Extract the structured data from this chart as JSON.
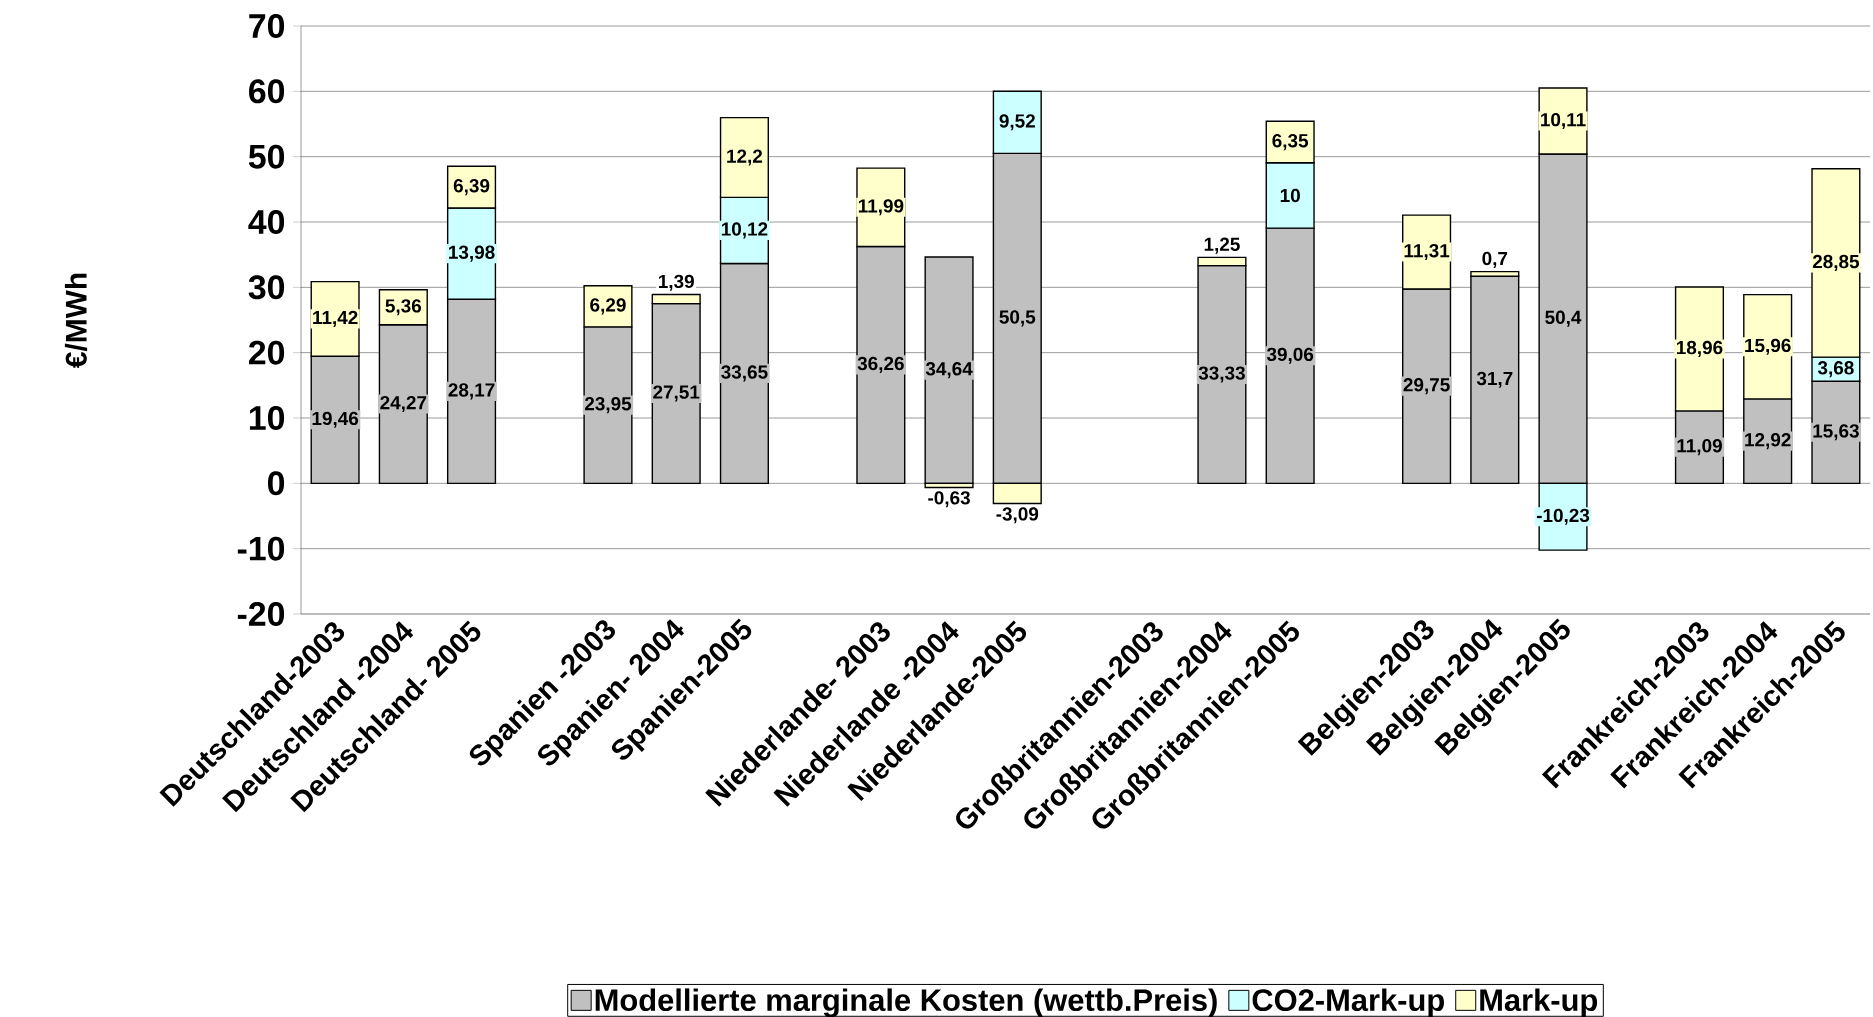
{
  "chart_data": {
    "type": "bar",
    "stacked": true,
    "ylabel": "€/MWh",
    "categories": [
      "Deutschland-2003",
      "Deutschland -2004",
      "Deutschland- 2005",
      null,
      "Spanien -2003",
      "Spanien- 2004",
      "Spanien-2005",
      null,
      "Niederlande- 2003",
      "Niederlande -2004",
      "Niederlande-2005",
      null,
      "Großbritannien-2003",
      "Großbritannien-2004",
      "Großbritannien-2005",
      null,
      "Belgien-2003",
      "Belgien-2004",
      "Belgien-2005",
      null,
      "Frankreich-2003",
      "Frankreich-2004",
      "Frankreich-2005"
    ],
    "series": [
      {
        "name": "Modellierte marginale Kosten (wettb.Preis)",
        "color": "#c0c0c0",
        "values": [
          19.46,
          24.27,
          28.17,
          null,
          23.95,
          27.51,
          33.65,
          null,
          36.26,
          34.64,
          50.5,
          null,
          null,
          33.33,
          39.06,
          null,
          29.75,
          31.7,
          50.4,
          null,
          11.09,
          12.92,
          15.63
        ],
        "value_labels": [
          "19,46",
          "24,27",
          "28,17",
          null,
          "23,95",
          "27,51",
          "33,65",
          null,
          "36,26",
          "34,64",
          "50,5",
          null,
          null,
          "33,33",
          "39,06",
          null,
          "29,75",
          "31,7",
          "50,4",
          null,
          "11,09",
          "12,92",
          "15,63"
        ]
      },
      {
        "name": "CO2-Mark-up",
        "color": "#ccffff",
        "values": [
          null,
          null,
          13.98,
          null,
          null,
          null,
          10.12,
          null,
          null,
          null,
          9.52,
          null,
          null,
          null,
          10,
          null,
          null,
          null,
          -10.23,
          null,
          null,
          null,
          3.68
        ],
        "value_labels": [
          null,
          null,
          "13,98",
          null,
          null,
          null,
          "10,12",
          null,
          null,
          null,
          "9,52",
          null,
          null,
          null,
          "10",
          null,
          null,
          null,
          "-10,23",
          null,
          null,
          null,
          "3,68"
        ]
      },
      {
        "name": "Mark-up",
        "color": "#ffffcc",
        "values": [
          11.42,
          5.36,
          6.39,
          null,
          6.29,
          1.39,
          12.2,
          null,
          11.99,
          -0.63,
          -3.09,
          null,
          null,
          1.25,
          6.35,
          null,
          11.31,
          0.7,
          10.11,
          null,
          18.96,
          15.96,
          28.85
        ],
        "value_labels": [
          "11,42",
          "5,36",
          "6,39",
          null,
          "6,29",
          "1,39",
          "12,2",
          null,
          "11,99",
          "-0,63",
          "-3,09",
          null,
          null,
          "1,25",
          "6,35",
          null,
          "11,31",
          "0,7",
          "10,11",
          null,
          "18,96",
          "15,96",
          "28,85"
        ]
      }
    ],
    "ylim": [
      -20,
      70
    ],
    "yticks": [
      -20,
      -10,
      0,
      10,
      20,
      30,
      40,
      50,
      60,
      70
    ],
    "grid": "y",
    "legend": "bottom"
  }
}
